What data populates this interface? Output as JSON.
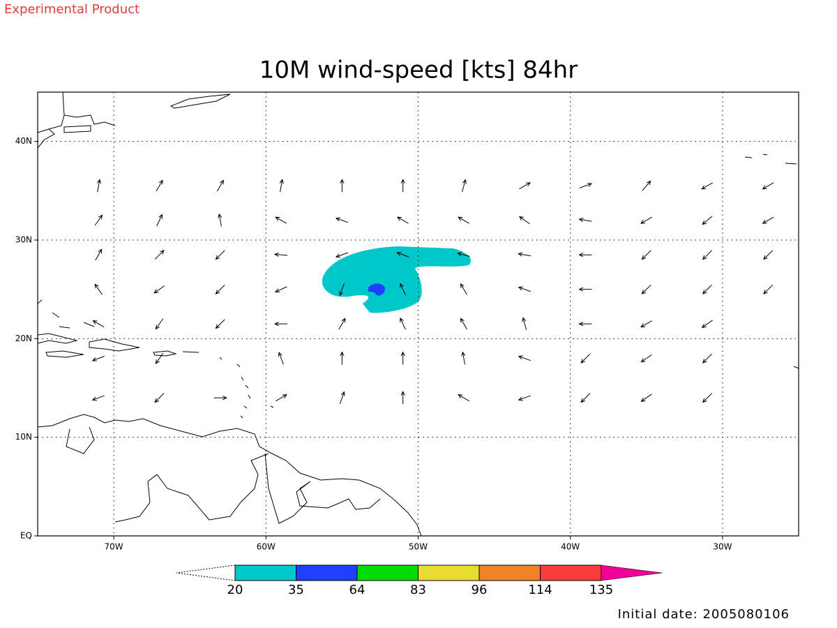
{
  "header": {
    "product": "Experimental Product",
    "title": "10M wind-speed [kts] 84hr"
  },
  "map": {
    "lonlim": [
      -75,
      -25
    ],
    "latlim": [
      0,
      45
    ],
    "lon_ticks": [
      {
        "value": -70,
        "label": "70W"
      },
      {
        "value": -60,
        "label": "60W"
      },
      {
        "value": -50,
        "label": "50W"
      },
      {
        "value": -40,
        "label": "40W"
      },
      {
        "value": -30,
        "label": "30W"
      }
    ],
    "lat_ticks": [
      {
        "value": 0,
        "label": "EQ"
      },
      {
        "value": 10,
        "label": "10N"
      },
      {
        "value": 20,
        "label": "20N"
      },
      {
        "value": 30,
        "label": "30N"
      },
      {
        "value": 40,
        "label": "40N"
      }
    ]
  },
  "wind": {
    "lons": [
      -71,
      -67,
      -63,
      -59,
      -55,
      -51,
      -47,
      -43,
      -39,
      -35,
      -31,
      -27
    ],
    "lats": [
      35.5,
      32,
      28.5,
      25,
      21.5,
      18,
      14
    ],
    "directions": [
      [
        80,
        60,
        60,
        80,
        90,
        90,
        75,
        30,
        20,
        50,
        210,
        210
      ],
      [
        55,
        65,
        100,
        150,
        160,
        150,
        150,
        145,
        170,
        210,
        220,
        210
      ],
      [
        60,
        45,
        225,
        175,
        200,
        160,
        165,
        170,
        180,
        225,
        225,
        225
      ],
      [
        125,
        215,
        225,
        205,
        250,
        115,
        120,
        160,
        180,
        225,
        225,
        225
      ],
      [
        150,
        235,
        225,
        180,
        60,
        115,
        120,
        105,
        180,
        210,
        215,
        null
      ],
      [
        200,
        235,
        null,
        110,
        90,
        90,
        100,
        160,
        225,
        215,
        225,
        null
      ],
      [
        200,
        225,
        0,
        30,
        70,
        90,
        150,
        200,
        225,
        215,
        225,
        null
      ]
    ]
  },
  "colorbar": {
    "levels": [
      20,
      35,
      64,
      83,
      96,
      114,
      135
    ],
    "colors": [
      "#00c8c8",
      "#2040ff",
      "#00dc00",
      "#e6dc32",
      "#f08228",
      "#fa3c3c",
      "#f00096"
    ]
  },
  "footer": {
    "initial_date": "Initial date: 2005080106"
  }
}
